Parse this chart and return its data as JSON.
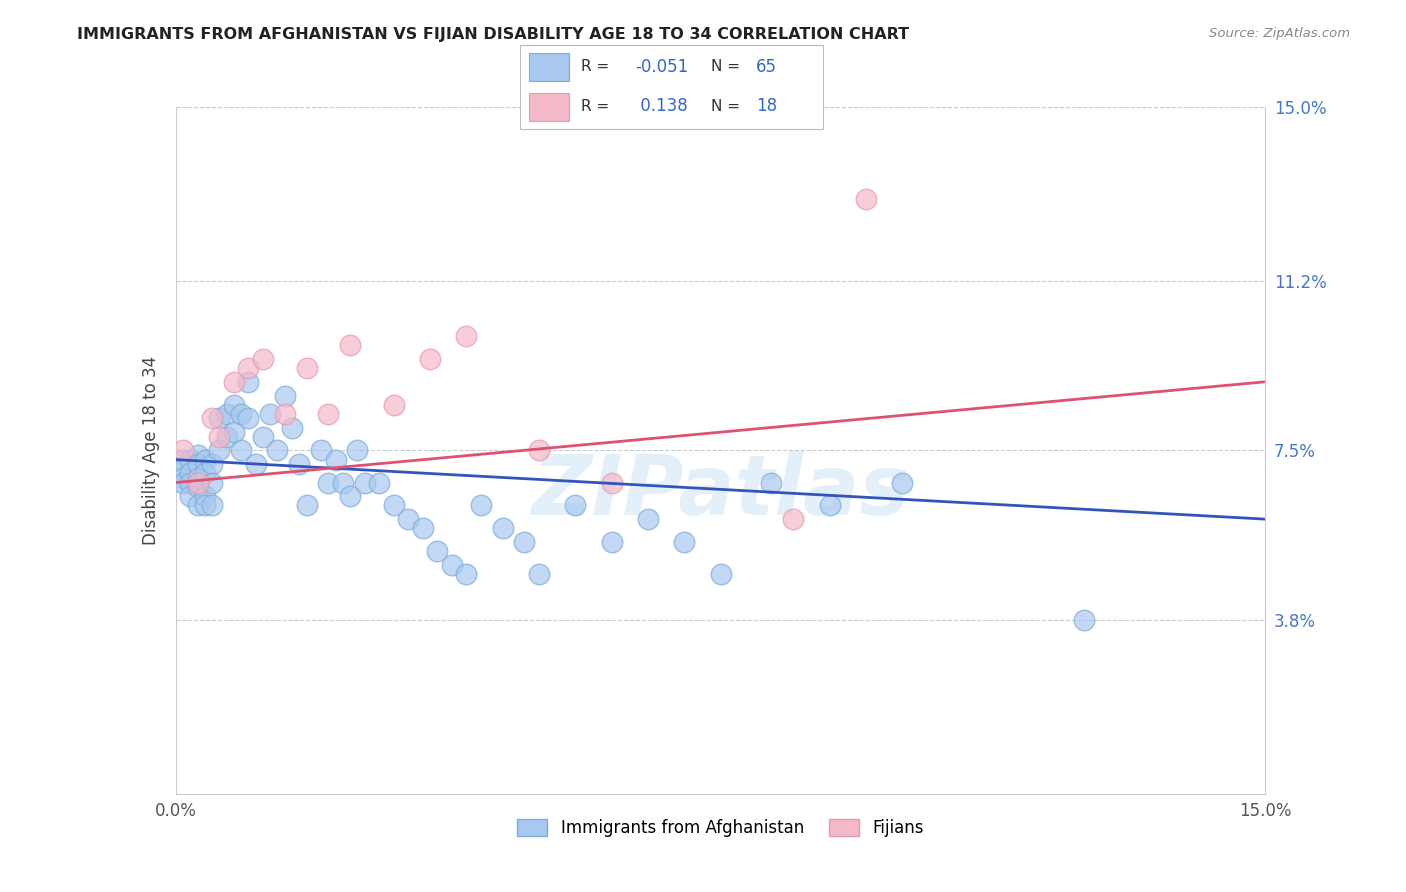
{
  "title": "IMMIGRANTS FROM AFGHANISTAN VS FIJIAN DISABILITY AGE 18 TO 34 CORRELATION CHART",
  "source": "Source: ZipAtlas.com",
  "ylabel": "Disability Age 18 to 34",
  "xmin": 0.0,
  "xmax": 0.15,
  "ymin": 0.0,
  "ymax": 0.15,
  "ytick_vals": [
    0.038,
    0.075,
    0.112,
    0.15
  ],
  "ytick_labels": [
    "3.8%",
    "7.5%",
    "11.2%",
    "15.0%"
  ],
  "xtick_vals": [
    0.0,
    0.025,
    0.05,
    0.075,
    0.1,
    0.125,
    0.15
  ],
  "xtick_labels": [
    "0.0%",
    "",
    "",
    "",
    "",
    "",
    "15.0%"
  ],
  "blue_color": "#a8c8f0",
  "pink_color": "#f4b8c8",
  "blue_edge_color": "#7aacd8",
  "pink_edge_color": "#e898b0",
  "blue_line_color": "#3355bb",
  "pink_line_color": "#e05070",
  "watermark": "ZIPatlas",
  "legend_r1_label": "R = ",
  "legend_r1_val": "-0.051",
  "legend_r1_n_label": "N = ",
  "legend_r1_n_val": "65",
  "legend_r2_label": "R =  ",
  "legend_r2_val": "0.138",
  "legend_r2_n_label": "N = ",
  "legend_r2_n_val": "18",
  "blue_line_x0": 0.0,
  "blue_line_x1": 0.15,
  "blue_line_y0": 0.073,
  "blue_line_y1": 0.06,
  "pink_line_x0": 0.0,
  "pink_line_x1": 0.15,
  "pink_line_y0": 0.068,
  "pink_line_y1": 0.09,
  "blue_x": [
    0.001,
    0.001,
    0.001,
    0.001,
    0.002,
    0.002,
    0.002,
    0.002,
    0.003,
    0.003,
    0.003,
    0.003,
    0.003,
    0.004,
    0.004,
    0.004,
    0.004,
    0.005,
    0.005,
    0.005,
    0.006,
    0.006,
    0.007,
    0.007,
    0.008,
    0.008,
    0.009,
    0.009,
    0.01,
    0.01,
    0.011,
    0.012,
    0.013,
    0.014,
    0.015,
    0.016,
    0.017,
    0.018,
    0.02,
    0.021,
    0.022,
    0.023,
    0.024,
    0.025,
    0.026,
    0.028,
    0.03,
    0.032,
    0.034,
    0.036,
    0.038,
    0.04,
    0.042,
    0.045,
    0.048,
    0.05,
    0.055,
    0.06,
    0.065,
    0.07,
    0.075,
    0.082,
    0.09,
    0.1,
    0.125
  ],
  "blue_y": [
    0.073,
    0.071,
    0.069,
    0.068,
    0.073,
    0.07,
    0.068,
    0.065,
    0.074,
    0.072,
    0.069,
    0.067,
    0.063,
    0.073,
    0.07,
    0.065,
    0.063,
    0.072,
    0.068,
    0.063,
    0.082,
    0.075,
    0.083,
    0.078,
    0.085,
    0.079,
    0.083,
    0.075,
    0.09,
    0.082,
    0.072,
    0.078,
    0.083,
    0.075,
    0.087,
    0.08,
    0.072,
    0.063,
    0.075,
    0.068,
    0.073,
    0.068,
    0.065,
    0.075,
    0.068,
    0.068,
    0.063,
    0.06,
    0.058,
    0.053,
    0.05,
    0.048,
    0.063,
    0.058,
    0.055,
    0.048,
    0.063,
    0.055,
    0.06,
    0.055,
    0.048,
    0.068,
    0.063,
    0.068,
    0.038
  ],
  "pink_x": [
    0.001,
    0.003,
    0.005,
    0.006,
    0.008,
    0.01,
    0.012,
    0.015,
    0.018,
    0.021,
    0.024,
    0.03,
    0.035,
    0.04,
    0.05,
    0.06,
    0.085,
    0.095
  ],
  "pink_y": [
    0.075,
    0.068,
    0.082,
    0.078,
    0.09,
    0.093,
    0.095,
    0.083,
    0.093,
    0.083,
    0.098,
    0.085,
    0.095,
    0.1,
    0.075,
    0.068,
    0.06,
    0.13
  ]
}
